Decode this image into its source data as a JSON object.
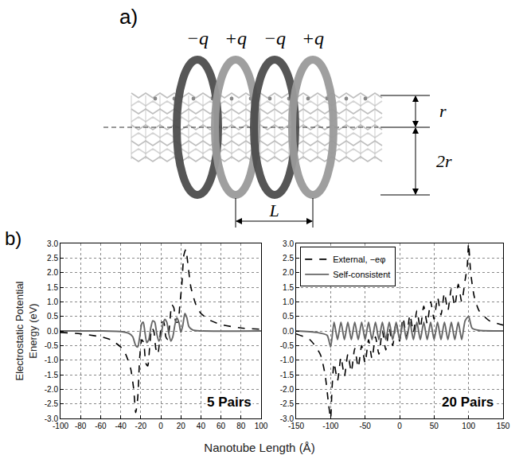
{
  "panel_a": {
    "label": "a)",
    "charges": [
      "−q",
      "+q",
      "−q",
      "+q"
    ],
    "dimensions": {
      "radius": "r",
      "ring_radius": "2r",
      "period": "L"
    }
  },
  "panel_b": {
    "label": "b)",
    "x_label": "Nanotube Length (Å)",
    "y_label": "Electrostatic Potential Energy (eV)"
  },
  "chart_data": [
    {
      "type": "line",
      "annotation": "5 Pairs",
      "grid": true,
      "xlim": [
        -100,
        100
      ],
      "xticks": [
        -100,
        -80,
        -60,
        -40,
        -20,
        0,
        20,
        40,
        60,
        80,
        100
      ],
      "ylim": [
        -3,
        3
      ],
      "yticks": [
        {
          "value": -3,
          "label": "-3.0"
        },
        {
          "value": -2.5,
          "label": "-2.5"
        },
        {
          "value": -2,
          "label": "-2.0"
        },
        {
          "value": -1.5,
          "label": "-1.5"
        },
        {
          "value": -1,
          "label": "-1.0"
        },
        {
          "value": -0.5,
          "label": "-0.5"
        },
        {
          "value": 0,
          "label": "0.0"
        },
        {
          "value": 0.5,
          "label": "0.5"
        },
        {
          "value": 1,
          "label": "1.0"
        },
        {
          "value": 1.5,
          "label": "1.5"
        },
        {
          "value": 2,
          "label": "2.0"
        },
        {
          "value": 2.5,
          "label": "2.5"
        },
        {
          "value": 3,
          "label": "3.0"
        }
      ],
      "series": [
        {
          "color": "#000000",
          "line_style": "dashed",
          "x": [
            -100,
            -80,
            -60,
            -50,
            -40,
            -35,
            -30,
            -27,
            -25,
            -23,
            -21,
            -19,
            -17,
            -15,
            -13,
            -11,
            -9,
            -7,
            -5,
            -3,
            -1,
            1,
            3,
            5,
            7,
            9,
            11,
            13,
            15,
            17,
            19,
            21,
            23,
            25,
            27,
            30,
            35,
            40,
            50,
            60,
            80,
            100
          ],
          "values": [
            -0.05,
            -0.1,
            -0.2,
            -0.3,
            -0.55,
            -0.8,
            -1.3,
            -2.0,
            -2.8,
            -2.3,
            -0.9,
            -0.3,
            -0.4,
            -1.1,
            -1.2,
            -0.5,
            0.1,
            0,
            -0.6,
            -0.8,
            -0.3,
            0.3,
            0.3,
            -0.2,
            -0.3,
            0.3,
            0.9,
            0.8,
            0.3,
            0.3,
            0.9,
            1.6,
            2.6,
            2.8,
            2.3,
            1.5,
            0.9,
            0.6,
            0.35,
            0.22,
            0.1,
            0.06
          ]
        },
        {
          "color": "#666666",
          "line_style": "solid",
          "x": [
            -100,
            -60,
            -40,
            -32,
            -28,
            -25,
            -23,
            -21,
            -19,
            -17.5,
            -16,
            -14,
            -12,
            -10,
            -8,
            -6,
            -4,
            -2,
            0,
            2,
            4,
            6,
            8,
            10,
            12,
            14,
            16,
            18,
            20,
            22,
            24,
            26,
            28,
            32,
            40,
            100
          ],
          "values": [
            0,
            0,
            -0.02,
            -0.08,
            -0.2,
            -0.5,
            -0.55,
            -0.2,
            0.25,
            0.3,
            0,
            -0.4,
            -0.3,
            0.1,
            0.35,
            0.3,
            -0.1,
            -0.35,
            -0.2,
            0.2,
            0.4,
            0.3,
            -0.1,
            -0.35,
            -0.2,
            0.2,
            0.45,
            0.3,
            -0.05,
            0.2,
            0.6,
            0.45,
            0.15,
            0.03,
            0,
            0
          ]
        }
      ]
    },
    {
      "type": "line",
      "annotation": "20 Pairs",
      "grid": true,
      "legend": "upper left",
      "xlim": [
        -150,
        150
      ],
      "xticks": [
        -150,
        -100,
        -50,
        0,
        50,
        100,
        150
      ],
      "ylim": [
        -3,
        3
      ],
      "yticks": [
        {
          "value": -3,
          "label": "-3.0"
        },
        {
          "value": -2.5,
          "label": "-2.5"
        },
        {
          "value": -2,
          "label": "-2.0"
        },
        {
          "value": -1.5,
          "label": "-1.5"
        },
        {
          "value": -1,
          "label": "-1.0"
        },
        {
          "value": -0.5,
          "label": "-0.5"
        },
        {
          "value": 0,
          "label": "0.0"
        },
        {
          "value": 0.5,
          "label": "0.5"
        },
        {
          "value": 1,
          "label": "1.0"
        },
        {
          "value": 1.5,
          "label": "1.5"
        },
        {
          "value": 2,
          "label": "2.0"
        },
        {
          "value": 2.5,
          "label": "2.5"
        },
        {
          "value": 3,
          "label": "3.0"
        }
      ],
      "series": [
        {
          "name": "External, −eφ",
          "color": "#000000",
          "line_style": "dashed",
          "x": [
            -150,
            -130,
            -115,
            -108,
            -103,
            -100,
            -98,
            -95,
            -90,
            -85,
            -80,
            -75,
            -70,
            -65,
            -60,
            -55,
            -50,
            -45,
            -40,
            -35,
            -30,
            -25,
            -20,
            -15,
            -10,
            -5,
            0,
            5,
            10,
            15,
            20,
            25,
            30,
            35,
            40,
            45,
            50,
            55,
            60,
            65,
            70,
            75,
            80,
            85,
            90,
            95,
            98,
            100,
            103,
            108,
            115,
            130,
            150
          ],
          "values": [
            -0.1,
            -0.3,
            -0.8,
            -1.5,
            -2.5,
            -3.0,
            -2.0,
            -1.1,
            -1.7,
            -0.9,
            -1.55,
            -0.8,
            -1.4,
            -0.6,
            -1.25,
            -0.5,
            -1.1,
            -0.3,
            -0.95,
            -0.2,
            -0.8,
            0,
            -0.65,
            0.1,
            -0.5,
            0.3,
            -0.35,
            0.45,
            -0.2,
            0.55,
            -0.05,
            0.7,
            0.1,
            0.85,
            0.25,
            1.0,
            0.4,
            1.15,
            0.55,
            1.3,
            0.7,
            1.45,
            0.85,
            1.6,
            1.0,
            1.75,
            2.2,
            3.0,
            2.0,
            1.2,
            0.7,
            0.35,
            0.2
          ]
        },
        {
          "name": "Self-consistent",
          "color": "#666666",
          "line_style": "solid",
          "x": [
            -150,
            -120,
            -105,
            -100,
            -95,
            -90,
            -85,
            -80,
            -75,
            -70,
            -65,
            -60,
            -55,
            -50,
            -45,
            -40,
            -35,
            -30,
            -25,
            -20,
            -15,
            -10,
            -5,
            0,
            5,
            10,
            15,
            20,
            25,
            30,
            35,
            40,
            45,
            50,
            55,
            60,
            65,
            70,
            75,
            80,
            85,
            90,
            95,
            100,
            105,
            115,
            150
          ],
          "values": [
            0,
            -0.05,
            -0.15,
            -0.55,
            0.3,
            -0.3,
            0.3,
            -0.3,
            0.3,
            -0.3,
            0.3,
            -0.3,
            0.3,
            -0.3,
            0.3,
            -0.3,
            0.3,
            -0.3,
            0.3,
            -0.3,
            0.3,
            -0.3,
            0.3,
            -0.3,
            0.3,
            -0.3,
            0.3,
            -0.3,
            0.3,
            -0.3,
            0.3,
            -0.3,
            0.3,
            -0.3,
            0.3,
            -0.3,
            0.3,
            -0.3,
            0.3,
            -0.3,
            0.3,
            -0.3,
            0.35,
            0.5,
            0.1,
            0.02,
            0
          ]
        }
      ]
    }
  ]
}
